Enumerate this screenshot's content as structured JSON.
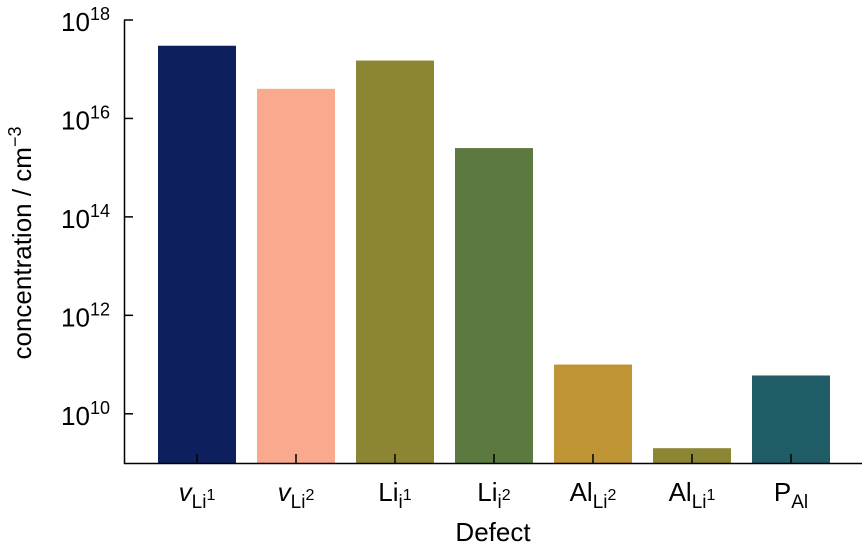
{
  "chart_data": {
    "type": "bar",
    "title": "",
    "xlabel": "Defect",
    "ylabel": {
      "text": "concentration / cm",
      "sup": "−3"
    },
    "yscale": "log",
    "ylim": [
      1000000000.0,
      1e+18
    ],
    "grid": false,
    "legend": "none",
    "yticks": [
      {
        "value": 10000000000.0,
        "base": "10",
        "exp": "10"
      },
      {
        "value": 1000000000000.0,
        "base": "10",
        "exp": "12"
      },
      {
        "value": 100000000000000.0,
        "base": "10",
        "exp": "14"
      },
      {
        "value": 1e+16,
        "base": "10",
        "exp": "16"
      },
      {
        "value": 1e+18,
        "base": "10",
        "exp": "18"
      }
    ],
    "categories": [
      {
        "main": "v",
        "sub": "Li",
        "subsup": "1",
        "italic": true
      },
      {
        "main": "v",
        "sub": "Li",
        "subsup": "2",
        "italic": true
      },
      {
        "main": "Li",
        "sub": "i",
        "subsup": "1",
        "italic": false
      },
      {
        "main": "Li",
        "sub": "i",
        "subsup": "2",
        "italic": false
      },
      {
        "main": "Al",
        "sub": "Li",
        "subsup": "2",
        "italic": false
      },
      {
        "main": "Al",
        "sub": "Li",
        "subsup": "1",
        "italic": false
      },
      {
        "main": "P",
        "sub": "Al",
        "subsup": "",
        "italic": false
      }
    ],
    "values": [
      3e+17,
      4e+16,
      1.5e+17,
      2500000000000000.0,
      100000000000.0,
      2000000000.0,
      60000000000.0
    ],
    "colors": [
      "#0d1f5c",
      "#f9a98d",
      "#8b8534",
      "#5c7a40",
      "#bf9434",
      "#8b8534",
      "#1f5c66"
    ]
  }
}
